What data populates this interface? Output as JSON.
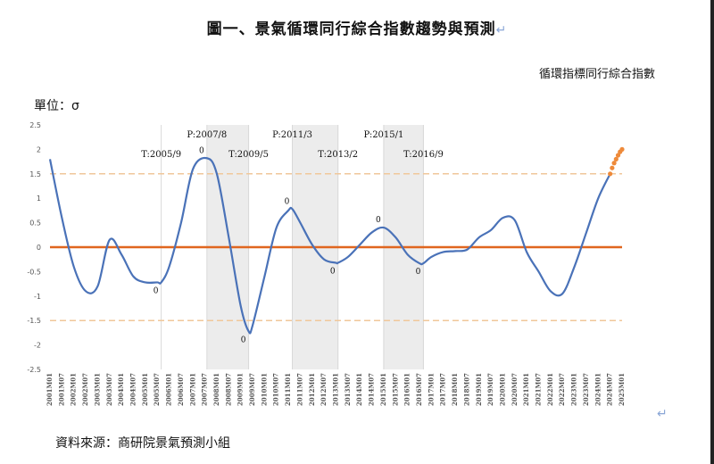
{
  "title": "圖一、景氣循環同行綜合指數趨勢與預測",
  "return_mark": "↵",
  "legend_label": "循環指標同行綜合指數",
  "unit_label": "單位：σ",
  "source": "資料來源：商研院景氣預測小組",
  "colors": {
    "line": "#4a72b8",
    "zero": "#e0661f",
    "band": "#f0c79a",
    "forecast": "#ee8a3a",
    "shade": "#ececec"
  },
  "chart_data": {
    "type": "line",
    "ylim": [
      -2.5,
      2.5
    ],
    "yticks": [
      "2.5",
      "2",
      "1.5",
      "1",
      "0.5",
      "0",
      "-0.5",
      "-1",
      "-1.5",
      "-2",
      "-2.5"
    ],
    "xticks": [
      "2001M01",
      "2001M07",
      "2002M01",
      "2002M07",
      "2003M01",
      "2003M07",
      "2004M01",
      "2004M07",
      "2005M01",
      "2005M07",
      "2006M01",
      "2006M07",
      "2007M01",
      "2007M07",
      "2008M01",
      "2008M07",
      "2009M01",
      "2009M07",
      "2010M01",
      "2010M07",
      "2011M01",
      "2011M07",
      "2012M01",
      "2012M07",
      "2013M01",
      "2013M07",
      "2014M01",
      "2014M07",
      "2015M01",
      "2015M07",
      "2016M01",
      "2016M07",
      "2017M01",
      "2017M07",
      "2018M01",
      "2018M07",
      "2019M01",
      "2019M07",
      "2020M01",
      "2020M07",
      "2021M01",
      "2021M07",
      "2022M01",
      "2022M07",
      "2023M01",
      "2023M07",
      "2024M01",
      "2024M07",
      "2025M01"
    ],
    "reference_lines": [
      0,
      1.5,
      -1.5
    ],
    "shaded_periods": [
      [
        "2007M08",
        "2009M05"
      ],
      [
        "2011M03",
        "2013M02"
      ],
      [
        "2015M01",
        "2016M09"
      ]
    ],
    "turning_points": [
      {
        "label": "T:2005/9",
        "date": "2005M09",
        "type": "T"
      },
      {
        "label": "P:2007/8",
        "date": "2007M08",
        "type": "P"
      },
      {
        "label": "T:2009/5",
        "date": "2009M05",
        "type": "T"
      },
      {
        "label": "P:2011/3",
        "date": "2011M03",
        "type": "P"
      },
      {
        "label": "T:2013/2",
        "date": "2013M02",
        "type": "T"
      },
      {
        "label": "P:2015/1",
        "date": "2015M01",
        "type": "P"
      },
      {
        "label": "T:2016/9",
        "date": "2016M09",
        "type": "T"
      }
    ],
    "zero_markers": [
      {
        "date": "2005M09",
        "value": -0.72,
        "label": "0"
      },
      {
        "date": "2007M08",
        "value": 1.82,
        "label": "0"
      },
      {
        "date": "2009M05",
        "value": -1.72,
        "label": "0"
      },
      {
        "date": "2011M03",
        "value": 0.78,
        "label": "0"
      },
      {
        "date": "2013M02",
        "value": -0.32,
        "label": "0"
      },
      {
        "date": "2015M01",
        "value": 0.4,
        "label": "0"
      },
      {
        "date": "2016M09",
        "value": -0.33,
        "label": "0"
      }
    ],
    "series": [
      {
        "x": [
          "2001M01",
          "2001M07",
          "2002M01",
          "2002M07",
          "2003M01",
          "2003M07",
          "2004M01",
          "2004M07",
          "2005M01",
          "2005M07",
          "2005M09",
          "2006M01",
          "2006M07",
          "2007M01",
          "2007M08",
          "2008M01",
          "2008M07",
          "2009M01",
          "2009M05",
          "2009M07",
          "2010M01",
          "2010M07",
          "2011M01",
          "2011M03",
          "2011M07",
          "2012M01",
          "2012M07",
          "2013M01",
          "2013M02",
          "2013M07",
          "2014M01",
          "2014M07",
          "2015M01",
          "2015M07",
          "2016M01",
          "2016M07",
          "2016M09",
          "2017M01",
          "2017M07",
          "2018M01",
          "2018M07",
          "2019M01",
          "2019M07",
          "2020M01",
          "2020M07",
          "2021M01",
          "2021M07",
          "2022M01",
          "2022M07",
          "2023M01",
          "2023M07",
          "2024M01",
          "2024M07"
        ],
        "values": [
          1.8,
          0.6,
          -0.4,
          -0.9,
          -0.8,
          0.15,
          -0.15,
          -0.6,
          -0.72,
          -0.72,
          -0.72,
          -0.4,
          0.5,
          1.6,
          1.82,
          1.5,
          0.2,
          -1.2,
          -1.72,
          -1.6,
          -0.6,
          0.4,
          0.75,
          0.78,
          0.5,
          0.05,
          -0.25,
          -0.32,
          -0.32,
          -0.2,
          0.05,
          0.3,
          0.4,
          0.2,
          -0.15,
          -0.33,
          -0.33,
          -0.2,
          -0.1,
          -0.08,
          -0.05,
          0.2,
          0.35,
          0.6,
          0.55,
          -0.1,
          -0.5,
          -0.9,
          -0.95,
          -0.4,
          0.3,
          1.0,
          1.5
        ]
      },
      {
        "x": [
          "2024M07",
          "2024M08",
          "2024M09",
          "2024M10",
          "2024M11",
          "2024M12",
          "2025M01"
        ],
        "values": [
          1.5,
          1.62,
          1.72,
          1.8,
          1.88,
          1.95,
          2.0
        ]
      }
    ]
  }
}
